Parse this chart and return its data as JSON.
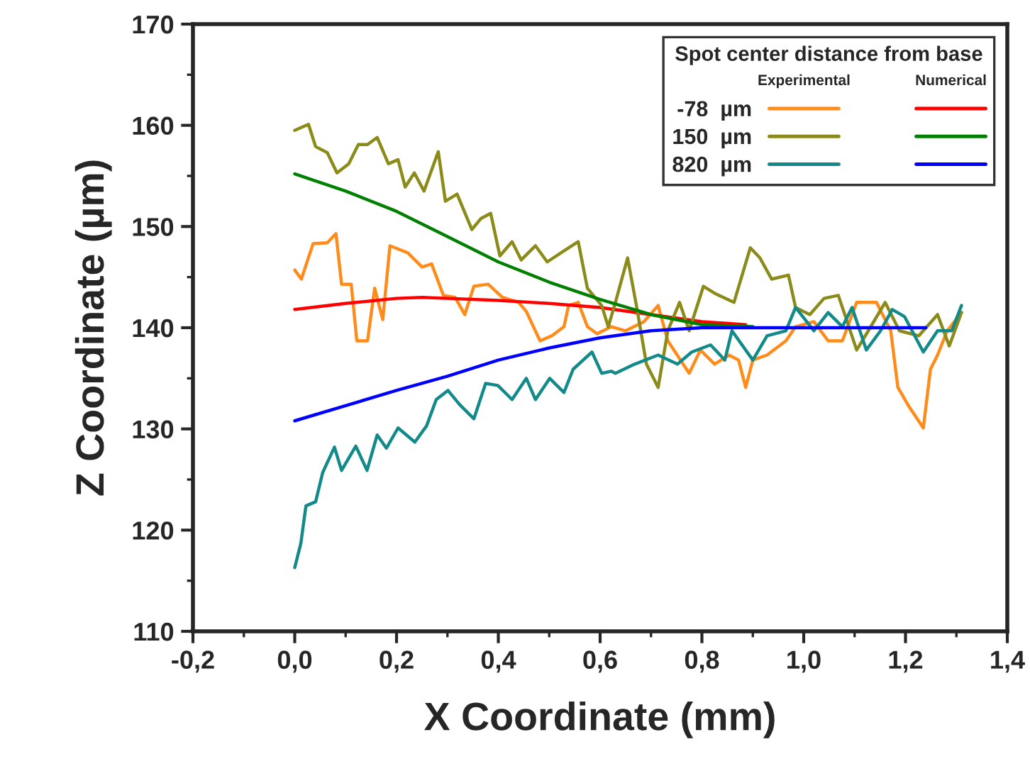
{
  "chart_data": {
    "type": "line",
    "xlabel": "X Coordinate (mm)",
    "ylabel": "Z Coordinate (µm)",
    "legend_title": "Spot center distance from base",
    "annotations": [
      "Experimental",
      "Numerical"
    ],
    "xlim": [
      -0.2,
      1.4
    ],
    "ylim": [
      110,
      170
    ],
    "xticks": [
      {
        "value": -0.2,
        "label": "-0,2"
      },
      {
        "value": 0.0,
        "label": "0,0"
      },
      {
        "value": 0.2,
        "label": "0,2"
      },
      {
        "value": 0.4,
        "label": "0,4"
      },
      {
        "value": 0.6,
        "label": "0,6"
      },
      {
        "value": 0.8,
        "label": "0,8"
      },
      {
        "value": 1.0,
        "label": "1,0"
      },
      {
        "value": 1.2,
        "label": "1,2"
      },
      {
        "value": 1.4,
        "label": "1,4"
      }
    ],
    "yticks": [
      110,
      120,
      130,
      140,
      150,
      160,
      170
    ],
    "grid": false,
    "legend": "top right",
    "marker": "none",
    "line_style": "solid",
    "series": [
      {
        "name": "-78  µm",
        "color": "#ff8c1a",
        "x": [
          0,
          0.013,
          0.036,
          0.064,
          0.081,
          0.092,
          0.111,
          0.122,
          0.143,
          0.157,
          0.173,
          0.187,
          0.222,
          0.25,
          0.269,
          0.292,
          0.315,
          0.334,
          0.352,
          0.38,
          0.408,
          0.44,
          0.455,
          0.482,
          0.505,
          0.529,
          0.538,
          0.557,
          0.575,
          0.594,
          0.622,
          0.65,
          0.686,
          0.714,
          0.733,
          0.775,
          0.797,
          0.825,
          0.853,
          0.872,
          0.886,
          0.9,
          0.928,
          0.965,
          0.984,
          1.02,
          1.048,
          1.076,
          1.104,
          1.143,
          1.171,
          1.185,
          1.207,
          1.235,
          1.249,
          1.263,
          1.282,
          1.31
        ],
        "values": [
          145.7,
          144.8,
          148.3,
          148.4,
          149.3,
          144.3,
          144.3,
          138.7,
          138.7,
          143.9,
          140.8,
          148.1,
          147.4,
          146,
          146.3,
          143.2,
          143,
          141.3,
          144.1,
          144.3,
          143,
          142.5,
          141.6,
          138.7,
          139.2,
          140.1,
          142.2,
          142.5,
          140.1,
          139.4,
          140.1,
          139.7,
          140.6,
          142.2,
          138.7,
          135.5,
          137.8,
          136.4,
          137.3,
          136.8,
          134.1,
          136.8,
          137.3,
          138.7,
          140.1,
          140.6,
          138.7,
          138.7,
          142.5,
          142.5,
          139.7,
          134.1,
          132.2,
          130.1,
          135.9,
          137.3,
          139.7,
          141.5
        ]
      },
      {
        "color": "#ff0000",
        "x": [
          0,
          0.1,
          0.2,
          0.25,
          0.3,
          0.4,
          0.5,
          0.6,
          0.7,
          0.8,
          0.886
        ],
        "values": [
          141.8,
          142.4,
          142.9,
          143,
          142.9,
          142.7,
          142.4,
          142,
          141.3,
          140.6,
          140.3
        ]
      },
      {
        "name": "150  µm",
        "color": "#8b8b1a",
        "x": [
          0,
          0.027,
          0.041,
          0.064,
          0.083,
          0.106,
          0.125,
          0.143,
          0.162,
          0.184,
          0.203,
          0.217,
          0.235,
          0.254,
          0.282,
          0.296,
          0.319,
          0.348,
          0.366,
          0.385,
          0.403,
          0.427,
          0.445,
          0.473,
          0.496,
          0.529,
          0.557,
          0.575,
          0.603,
          0.616,
          0.63,
          0.654,
          0.672,
          0.691,
          0.714,
          0.733,
          0.756,
          0.775,
          0.803,
          0.825,
          0.863,
          0.895,
          0.914,
          0.937,
          0.97,
          0.984,
          1.012,
          1.04,
          1.068,
          1.104,
          1.127,
          1.16,
          1.188,
          1.226,
          1.263,
          1.286,
          1.31
        ],
        "values": [
          159.5,
          160.1,
          157.9,
          157.3,
          155.3,
          156.2,
          158.1,
          158.1,
          158.8,
          156.2,
          156.6,
          153.9,
          155.3,
          153.5,
          157.4,
          152.5,
          153.2,
          149.7,
          150.8,
          151.3,
          147.1,
          148.5,
          146.7,
          148.1,
          146.5,
          147.6,
          148.5,
          143.9,
          142.2,
          140.1,
          142.5,
          146.9,
          142,
          136.4,
          134.1,
          139.7,
          142.5,
          139.7,
          144.1,
          143.4,
          142.5,
          147.9,
          146.9,
          144.8,
          145.2,
          142,
          141.3,
          142.9,
          143.2,
          137.8,
          139.7,
          142.5,
          139.7,
          139.2,
          141.3,
          138.2,
          141.5
        ]
      },
      {
        "color": "#008000",
        "x": [
          0,
          0.1,
          0.2,
          0.3,
          0.4,
          0.5,
          0.6,
          0.7,
          0.8,
          0.9
        ],
        "values": [
          155.2,
          153.5,
          151.5,
          149,
          146.5,
          144.5,
          142.8,
          141.3,
          140.3,
          140.1
        ]
      },
      {
        "name": "820  µm",
        "color": "#138a8a",
        "x": [
          0,
          0.012,
          0.022,
          0.041,
          0.055,
          0.078,
          0.092,
          0.12,
          0.142,
          0.162,
          0.18,
          0.203,
          0.236,
          0.259,
          0.278,
          0.301,
          0.324,
          0.352,
          0.375,
          0.399,
          0.427,
          0.455,
          0.473,
          0.501,
          0.529,
          0.547,
          0.584,
          0.603,
          0.622,
          0.63,
          0.668,
          0.714,
          0.752,
          0.78,
          0.817,
          0.845,
          0.859,
          0.9,
          0.928,
          0.965,
          0.984,
          1.02,
          1.048,
          1.076,
          1.095,
          1.123,
          1.151,
          1.174,
          1.198,
          1.235,
          1.263,
          1.291,
          1.31
        ],
        "values": [
          116.3,
          118.7,
          122.4,
          122.8,
          125.7,
          128.2,
          125.9,
          128.3,
          125.9,
          129.4,
          128.1,
          130.1,
          128.7,
          130.3,
          132.9,
          133.8,
          132.4,
          131,
          134.5,
          134.3,
          132.9,
          135,
          132.9,
          135,
          133.6,
          135.9,
          137.6,
          135.5,
          135.7,
          135.5,
          136.4,
          137.3,
          136.4,
          137.6,
          138.3,
          136.8,
          139.7,
          136.8,
          139.2,
          139.7,
          142,
          139.7,
          141.5,
          140.1,
          142,
          137.8,
          139.7,
          141.8,
          141.1,
          137.6,
          139.7,
          139.7,
          142.2
        ]
      },
      {
        "color": "#0000ff",
        "x": [
          0,
          0.1,
          0.2,
          0.3,
          0.4,
          0.5,
          0.6,
          0.7,
          0.8,
          1.0,
          1.24
        ],
        "values": [
          130.8,
          132.3,
          133.8,
          135.2,
          136.8,
          138,
          139,
          139.7,
          140,
          140,
          140
        ]
      }
    ]
  }
}
